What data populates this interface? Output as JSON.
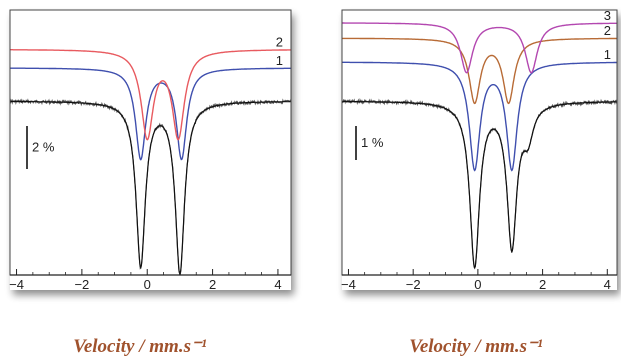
{
  "chart_data": [
    {
      "type": "line",
      "xlabel": "Velocity / mm.s⁻¹",
      "xlim": [
        -4.2,
        4.4
      ],
      "xticks": [
        -4,
        -2,
        0,
        2,
        4
      ],
      "xtick_labels": [
        "−4",
        "−2",
        "0",
        "2",
        "4"
      ],
      "scale_bar_label": "2 %",
      "scale_bar_percent": 2,
      "measured": {
        "baseline": 0,
        "lines": [
          {
            "center": -0.2,
            "depth": 7.6,
            "width": 0.34
          },
          {
            "center": 1.0,
            "depth": 7.9,
            "width": 0.34
          }
        ]
      },
      "series": [
        {
          "name": "1",
          "color": "#3f4fae",
          "baseline_offset": 1.7,
          "lines": [
            {
              "center": -0.2,
              "depth": 4.6,
              "width": 0.38
            },
            {
              "center": 1.05,
              "depth": 4.6,
              "width": 0.38
            }
          ]
        },
        {
          "name": "2",
          "color": "#e85a5f",
          "baseline_offset": 2.65,
          "lines": [
            {
              "center": 0.0,
              "depth": 4.4,
              "width": 0.45
            },
            {
              "center": 0.95,
              "depth": 4.4,
              "width": 0.45
            }
          ]
        }
      ]
    },
    {
      "type": "line",
      "xlabel": "Velocity / mm.s⁻¹",
      "xlim": [
        -4.2,
        4.3
      ],
      "xticks": [
        -4,
        -2,
        0,
        2,
        4
      ],
      "xtick_labels": [
        "−4",
        "−2",
        "0",
        "2",
        "4"
      ],
      "scale_bar_label": "1 %",
      "scale_bar_percent": 1,
      "measured": {
        "baseline": 0,
        "lines": [
          {
            "center": -0.1,
            "depth": 4.8,
            "width": 0.36
          },
          {
            "center": 1.05,
            "depth": 4.2,
            "width": 0.36
          },
          {
            "center": 1.55,
            "depth": 0.9,
            "width": 0.38
          }
        ]
      },
      "series": [
        {
          "name": "1",
          "color": "#3f4fae",
          "baseline_offset": 1.15,
          "lines": [
            {
              "center": -0.1,
              "depth": 3.1,
              "width": 0.4
            },
            {
              "center": 1.05,
              "depth": 3.1,
              "width": 0.4
            }
          ]
        },
        {
          "name": "2",
          "color": "#b86b36",
          "baseline_offset": 1.85,
          "lines": [
            {
              "center": -0.1,
              "depth": 1.85,
              "width": 0.42
            },
            {
              "center": 0.95,
              "depth": 1.85,
              "width": 0.42
            }
          ]
        },
        {
          "name": "3",
          "color": "#b347b0",
          "baseline_offset": 2.3,
          "lines": [
            {
              "center": -0.35,
              "depth": 1.45,
              "width": 0.45
            },
            {
              "center": 1.65,
              "depth": 1.45,
              "width": 0.45
            }
          ]
        }
      ]
    }
  ]
}
